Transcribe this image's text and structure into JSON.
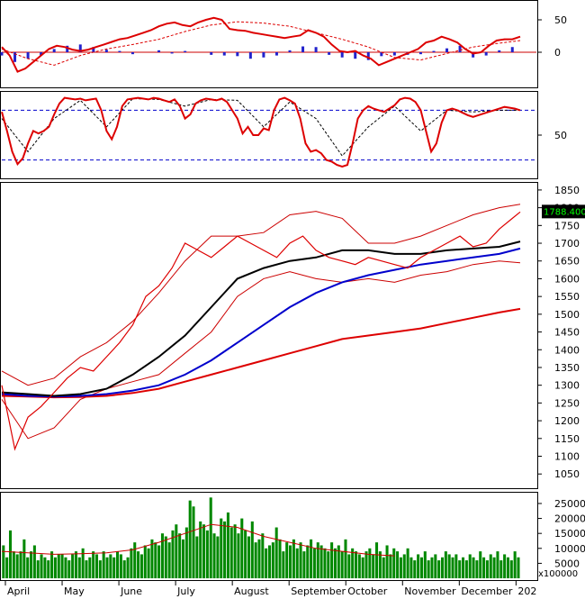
{
  "chart_data": [
    {
      "panel": "macd",
      "type": "line",
      "yticks": [
        50,
        0
      ],
      "ylim": [
        -50,
        75
      ],
      "zero_line": 0,
      "series": [
        {
          "role": "macd_line",
          "color": "#dd0000",
          "x": [
            0,
            3,
            6,
            9,
            12,
            15,
            18,
            21,
            24,
            27,
            30,
            33,
            36,
            39,
            42,
            45,
            48,
            51,
            54,
            57,
            60,
            63,
            66,
            69,
            72,
            75,
            78,
            81,
            84,
            87,
            90,
            93,
            96,
            99,
            102,
            105,
            108,
            111,
            114,
            117,
            120,
            123,
            126,
            129,
            132,
            135,
            138,
            141,
            144,
            147,
            150,
            153,
            156,
            159,
            162,
            165,
            168,
            171,
            174,
            177,
            180,
            183,
            186,
            189,
            192,
            195,
            198
          ],
          "y": [
            8,
            -5,
            -30,
            -25,
            -15,
            -5,
            5,
            10,
            8,
            4,
            2,
            4,
            8,
            12,
            16,
            20,
            22,
            26,
            30,
            34,
            40,
            44,
            46,
            42,
            40,
            46,
            50,
            53,
            50,
            36,
            34,
            33,
            30,
            28,
            26,
            24,
            22,
            24,
            26,
            34,
            30,
            24,
            12,
            2,
            0,
            2,
            -5,
            -10,
            -20,
            -15,
            -10,
            -5,
            0,
            5,
            15,
            18,
            24,
            20,
            15,
            5,
            -2,
            0,
            10,
            18,
            20,
            20,
            24
          ]
        },
        {
          "role": "signal_line",
          "color": "#dd0000",
          "x": [
            0,
            10,
            20,
            30,
            40,
            50,
            60,
            70,
            80,
            90,
            100,
            110,
            120,
            130,
            140,
            150,
            160,
            170,
            180,
            190,
            198
          ],
          "y": [
            5,
            -10,
            -20,
            -5,
            5,
            12,
            20,
            32,
            42,
            47,
            45,
            40,
            30,
            20,
            8,
            -8,
            -12,
            -2,
            8,
            14,
            18
          ]
        },
        {
          "role": "histogram",
          "color": "#2222cc",
          "x": [
            0,
            5,
            10,
            15,
            20,
            25,
            30,
            35,
            40,
            45,
            50,
            55,
            60,
            65,
            70,
            75,
            80,
            85,
            90,
            95,
            100,
            105,
            110,
            115,
            120,
            125,
            130,
            135,
            140,
            145,
            150,
            155,
            160,
            165,
            170,
            175,
            180,
            185,
            190,
            195
          ],
          "y": [
            -5,
            -15,
            -10,
            -5,
            5,
            10,
            12,
            8,
            4,
            2,
            -3,
            0,
            3,
            -2,
            2,
            0,
            -4,
            -5,
            -6,
            -10,
            -8,
            -5,
            3,
            9,
            8,
            -4,
            -8,
            -10,
            -12,
            -6,
            -5,
            -4,
            -3,
            2,
            6,
            10,
            -8,
            -5,
            3,
            8
          ]
        }
      ]
    },
    {
      "panel": "stochastic",
      "type": "line",
      "yticks": [
        50
      ],
      "ylim": [
        0,
        100
      ],
      "reference_lines": [
        80,
        20
      ],
      "series": [
        {
          "role": "k_line",
          "color": "#dd0000",
          "x": [
            0,
            2,
            4,
            6,
            8,
            10,
            12,
            14,
            16,
            18,
            20,
            22,
            24,
            26,
            28,
            30,
            32,
            34,
            36,
            38,
            40,
            42,
            44,
            46,
            48,
            50,
            52,
            54,
            56,
            58,
            60,
            62,
            64,
            66,
            68,
            70,
            72,
            74,
            76,
            78,
            80,
            82,
            84,
            86,
            88,
            90,
            92,
            94,
            96,
            98,
            100,
            102,
            104,
            106,
            108,
            110,
            112,
            114,
            116,
            118,
            120,
            122,
            124,
            126,
            128,
            130,
            132,
            134,
            136,
            138,
            140,
            142,
            144,
            146,
            148,
            150,
            152,
            154,
            156,
            158,
            160,
            162,
            164,
            166,
            168,
            170,
            172,
            174,
            176,
            178,
            180,
            182,
            184,
            186,
            188,
            190,
            192,
            194,
            196,
            198
          ],
          "y": [
            78,
            55,
            30,
            15,
            22,
            40,
            55,
            52,
            55,
            60,
            75,
            88,
            95,
            94,
            93,
            94,
            92,
            93,
            94,
            80,
            55,
            45,
            60,
            85,
            93,
            94,
            95,
            94,
            93,
            95,
            94,
            92,
            90,
            93,
            85,
            70,
            75,
            88,
            92,
            94,
            93,
            92,
            94,
            90,
            80,
            70,
            52,
            60,
            50,
            50,
            58,
            56,
            80,
            93,
            95,
            92,
            88,
            70,
            40,
            30,
            32,
            28,
            20,
            18,
            14,
            12,
            14,
            40,
            70,
            80,
            85,
            82,
            80,
            78,
            82,
            86,
            93,
            95,
            94,
            90,
            80,
            55,
            30,
            40,
            65,
            80,
            82,
            80,
            77,
            74,
            72,
            74,
            76,
            78,
            80,
            82,
            84,
            83,
            82,
            80
          ]
        },
        {
          "role": "d_line",
          "color": "#000000",
          "x": [
            0,
            10,
            20,
            30,
            40,
            50,
            60,
            70,
            80,
            90,
            100,
            110,
            120,
            130,
            140,
            150,
            160,
            170,
            180,
            190,
            198
          ],
          "y": [
            70,
            30,
            70,
            92,
            60,
            94,
            93,
            85,
            93,
            92,
            60,
            90,
            70,
            25,
            60,
            85,
            55,
            80,
            78,
            80,
            80
          ]
        }
      ]
    },
    {
      "panel": "price",
      "type": "line",
      "yticks": [
        1850,
        1800,
        1750,
        1700,
        1650,
        1600,
        1550,
        1500,
        1450,
        1400,
        1350,
        1300,
        1250,
        1200,
        1150,
        1100,
        1050
      ],
      "ylim": [
        1015,
        1865
      ],
      "last_price_label": "1788.400",
      "xticks": [
        "April",
        "May",
        "June",
        "July",
        "August",
        "September",
        "October",
        "November",
        "December",
        "202"
      ],
      "series": [
        {
          "role": "close",
          "color": "#dd0000",
          "x": [
            0,
            5,
            10,
            15,
            20,
            25,
            30,
            35,
            40,
            45,
            50,
            55,
            60,
            65,
            70,
            75,
            80,
            85,
            90,
            95,
            100,
            105,
            110,
            115,
            120,
            125,
            130,
            135,
            140,
            145,
            150,
            155,
            160,
            165,
            170,
            175,
            180,
            185,
            190,
            195,
            198
          ],
          "y": [
            1300,
            1120,
            1210,
            1240,
            1280,
            1320,
            1350,
            1340,
            1380,
            1420,
            1470,
            1550,
            1580,
            1630,
            1700,
            1680,
            1660,
            1690,
            1720,
            1700,
            1680,
            1660,
            1700,
            1720,
            1680,
            1660,
            1650,
            1640,
            1660,
            1650,
            1640,
            1630,
            1660,
            1680,
            1700,
            1720,
            1690,
            1700,
            1740,
            1770,
            1788
          ]
        },
        {
          "role": "bollinger_upper",
          "color": "#cc0000",
          "x": [
            0,
            10,
            20,
            30,
            40,
            50,
            60,
            70,
            80,
            90,
            100,
            110,
            120,
            130,
            140,
            150,
            160,
            170,
            180,
            190,
            198
          ],
          "y": [
            1340,
            1300,
            1320,
            1380,
            1420,
            1480,
            1560,
            1650,
            1720,
            1720,
            1730,
            1780,
            1790,
            1770,
            1700,
            1700,
            1720,
            1750,
            1780,
            1800,
            1810
          ]
        },
        {
          "role": "bollinger_lower",
          "color": "#cc0000",
          "x": [
            0,
            10,
            20,
            30,
            40,
            50,
            60,
            70,
            80,
            90,
            100,
            110,
            120,
            130,
            140,
            150,
            160,
            170,
            180,
            190,
            198
          ],
          "y": [
            1260,
            1150,
            1180,
            1260,
            1290,
            1310,
            1330,
            1390,
            1450,
            1550,
            1600,
            1620,
            1600,
            1590,
            1600,
            1590,
            1610,
            1620,
            1640,
            1650,
            1645
          ]
        },
        {
          "role": "ma_black",
          "color": "#000000",
          "x": [
            0,
            10,
            20,
            30,
            40,
            50,
            60,
            70,
            80,
            90,
            100,
            110,
            120,
            130,
            140,
            150,
            160,
            170,
            180,
            190,
            198
          ],
          "y": [
            1280,
            1275,
            1270,
            1275,
            1290,
            1330,
            1380,
            1440,
            1520,
            1600,
            1630,
            1650,
            1660,
            1680,
            1680,
            1670,
            1670,
            1680,
            1685,
            1690,
            1705
          ]
        },
        {
          "role": "ma_blue",
          "color": "#0000cc",
          "x": [
            0,
            10,
            20,
            30,
            40,
            50,
            60,
            70,
            80,
            90,
            100,
            110,
            120,
            130,
            140,
            150,
            160,
            170,
            180,
            190,
            198
          ],
          "y": [
            1275,
            1270,
            1268,
            1270,
            1275,
            1285,
            1300,
            1330,
            1370,
            1420,
            1470,
            1520,
            1560,
            1590,
            1610,
            1625,
            1640,
            1650,
            1660,
            1670,
            1685
          ]
        },
        {
          "role": "ma_red_long",
          "color": "#dd0000",
          "x": [
            0,
            10,
            20,
            30,
            40,
            50,
            60,
            70,
            80,
            90,
            100,
            110,
            120,
            130,
            140,
            150,
            160,
            170,
            180,
            190,
            198
          ],
          "y": [
            1270,
            1268,
            1266,
            1267,
            1270,
            1278,
            1290,
            1310,
            1330,
            1350,
            1370,
            1390,
            1410,
            1430,
            1440,
            1450,
            1460,
            1475,
            1490,
            1505,
            1515
          ]
        }
      ]
    },
    {
      "panel": "volume",
      "type": "bar",
      "yticks": [
        25000,
        20000,
        15000,
        10000,
        5000
      ],
      "ylim": [
        0,
        28000
      ],
      "unit_label": "x100000",
      "bar_color": "#008800",
      "ma_color": "#cc0000",
      "values": [
        11000,
        7000,
        16000,
        9000,
        8000,
        9000,
        13000,
        7000,
        9000,
        11000,
        6000,
        8000,
        7000,
        6000,
        9000,
        7000,
        8000,
        8000,
        7000,
        6000,
        8000,
        9000,
        7000,
        10000,
        6000,
        7000,
        9000,
        8000,
        6000,
        9000,
        7000,
        8000,
        7000,
        9000,
        8000,
        6000,
        7000,
        10000,
        12000,
        9000,
        8000,
        11000,
        10000,
        13000,
        12000,
        11000,
        15000,
        14000,
        12000,
        16000,
        18000,
        15000,
        13000,
        17000,
        26000,
        24000,
        14000,
        19000,
        18000,
        16000,
        27000,
        15000,
        14000,
        20000,
        19000,
        22000,
        17000,
        18000,
        15000,
        20000,
        16000,
        14000,
        19000,
        12000,
        13000,
        15000,
        10000,
        11000,
        12000,
        17000,
        13000,
        9000,
        12000,
        11000,
        13000,
        10000,
        12000,
        9000,
        11000,
        13000,
        10000,
        12000,
        11000,
        10000,
        9000,
        12000,
        10000,
        11000,
        9000,
        13000,
        8000,
        10000,
        9000,
        8000,
        7000,
        9000,
        10000,
        8000,
        12000,
        9000,
        7000,
        11000,
        8000,
        10000,
        9000,
        7000,
        8000,
        10000,
        7000,
        6000,
        8000,
        7000,
        9000,
        6000,
        7000,
        8000,
        6000,
        7000,
        9000,
        8000,
        7000,
        8000,
        6000,
        7000,
        6000,
        8000,
        7000,
        6000,
        9000,
        7000,
        6000,
        8000,
        7000,
        9000,
        6000,
        8000,
        7000,
        6000,
        9000,
        7000
      ],
      "ma_x": [
        0,
        10,
        20,
        30,
        40,
        50,
        60,
        70,
        80,
        90,
        100,
        110,
        120,
        130,
        140,
        150
      ],
      "ma_values": [
        9000,
        8500,
        8000,
        8200,
        8500,
        9500,
        12000,
        15000,
        18000,
        17000,
        14000,
        12000,
        10000,
        9000,
        8000,
        7500
      ]
    }
  ]
}
